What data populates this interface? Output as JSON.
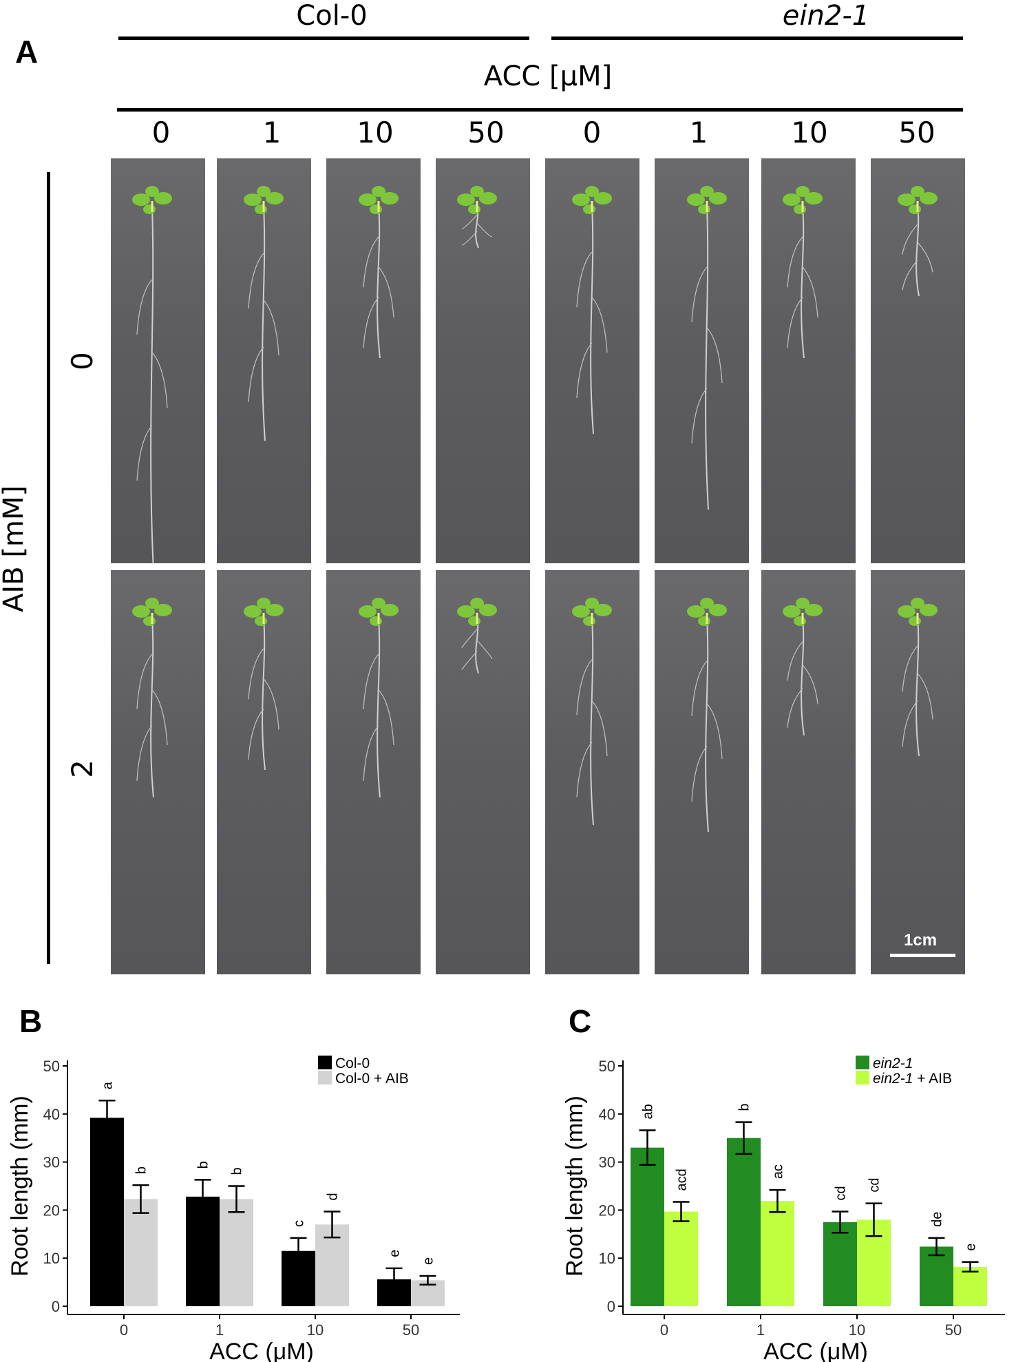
{
  "panel_a": {
    "letter": "A",
    "genotype_left": "Col-0",
    "genotype_right": "ein2-1",
    "acc_label": "ACC [μM]",
    "acc_values": [
      "0",
      "1",
      "10",
      "50",
      "0",
      "1",
      "10",
      "50"
    ],
    "aib_label": "AIB [mM]",
    "aib_rows": [
      "0",
      "2"
    ],
    "scale_bar": "1cm"
  },
  "panel_b": {
    "letter": "B"
  },
  "panel_c": {
    "letter": "C"
  },
  "chart_data": [
    {
      "type": "bar",
      "panel": "B",
      "xlabel": "ACC (μM)",
      "ylabel": "Root length (mm)",
      "categories": [
        "0",
        "1",
        "10",
        "50"
      ],
      "ylim": [
        0,
        50
      ],
      "yticks": [
        0,
        10,
        20,
        30,
        40,
        50
      ],
      "legend_position": "top-right",
      "series": [
        {
          "name": "Col-0",
          "color": "#000000",
          "values": [
            39.2,
            22.8,
            11.5,
            5.6
          ],
          "errors": [
            3.6,
            3.5,
            2.7,
            2.3
          ],
          "labels": [
            "a",
            "b",
            "c",
            "e"
          ]
        },
        {
          "name": "Col-0 + AIB",
          "color": "#d3d3d3",
          "values": [
            22.3,
            22.3,
            17.0,
            5.4
          ],
          "errors": [
            2.9,
            2.7,
            2.7,
            0.9
          ],
          "labels": [
            "b",
            "b",
            "d",
            "e"
          ]
        }
      ]
    },
    {
      "type": "bar",
      "panel": "C",
      "xlabel": "ACC (μM)",
      "ylabel": "Root length (mm)",
      "categories": [
        "0",
        "1",
        "10",
        "50"
      ],
      "ylim": [
        0,
        50
      ],
      "yticks": [
        0,
        10,
        20,
        30,
        40,
        50
      ],
      "legend_position": "top-right",
      "series": [
        {
          "name": "ein2-1",
          "color": "#228b22",
          "values": [
            33.0,
            35.0,
            17.5,
            12.4
          ],
          "errors": [
            3.6,
            3.3,
            2.2,
            1.8
          ],
          "labels": [
            "ab",
            "b",
            "cd",
            "de"
          ]
        },
        {
          "name": "ein2-1 + AIB",
          "color": "#bfff3f",
          "values": [
            19.7,
            21.9,
            18.0,
            8.2
          ],
          "errors": [
            2.0,
            2.3,
            3.4,
            1.0
          ],
          "labels": [
            "acd",
            "ac",
            "cd",
            "e"
          ]
        }
      ]
    }
  ]
}
